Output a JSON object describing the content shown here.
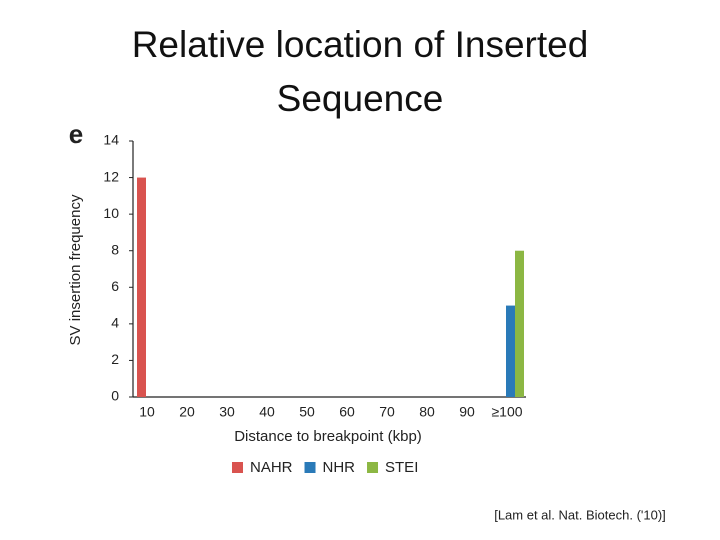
{
  "chart_data": {
    "type": "bar",
    "title": "Relative location of Inserted Sequence",
    "panel_label": "e",
    "y_label": "SV insertion frequency",
    "x_label": "Distance to breakpoint (kbp)",
    "source": "[Lam et al. Nat. Biotech. ('10)]",
    "categories": [
      "10",
      "20",
      "30",
      "40",
      "50",
      "60",
      "70",
      "80",
      "90",
      "≥100"
    ],
    "series": [
      {
        "name": "NAHR",
        "color": "#d9534f",
        "values": [
          12,
          0,
          0,
          0,
          0,
          0,
          0,
          0,
          0,
          0
        ]
      },
      {
        "name": "NHR",
        "color": "#2a7ab8",
        "values": [
          0,
          0,
          0,
          0,
          0,
          0,
          0,
          0,
          0,
          5
        ]
      },
      {
        "name": "STEI",
        "color": "#8cb743",
        "values": [
          0,
          0,
          0,
          0,
          0,
          0,
          0,
          0,
          0,
          8
        ]
      }
    ],
    "ylim": [
      0,
      14
    ],
    "yticks": [
      0,
      2,
      4,
      6,
      8,
      10,
      12,
      14
    ],
    "grid": false
  }
}
